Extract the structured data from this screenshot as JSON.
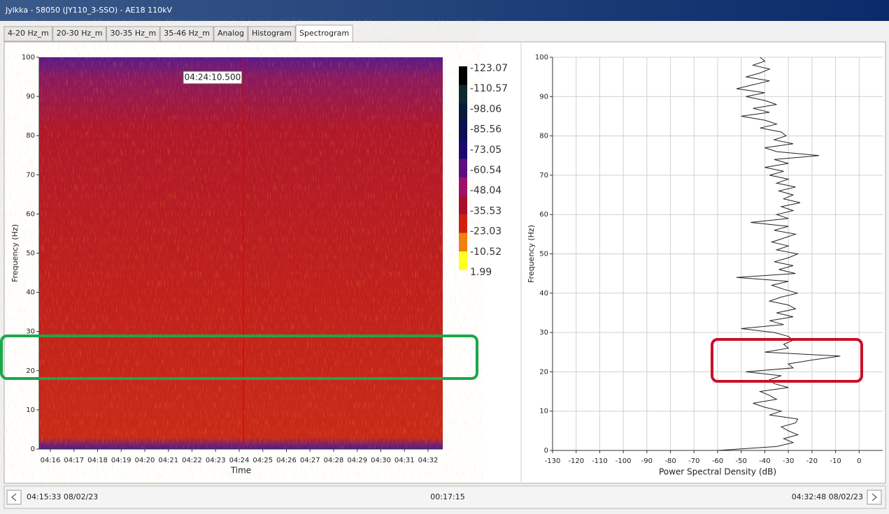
{
  "window": {
    "title": "Jylkka - 58050 (JY110_3-SSO) - AE18 110kV"
  },
  "tabs": [
    {
      "label": "4-20 Hz_m"
    },
    {
      "label": "20-30 Hz_m"
    },
    {
      "label": "30-35 Hz_m"
    },
    {
      "label": "35-46 Hz_m"
    },
    {
      "label": "Analog"
    },
    {
      "label": "Histogram"
    },
    {
      "label": "Spectrogram",
      "active": true
    }
  ],
  "chart_data": [
    {
      "type": "spectrogram",
      "ylabel": "Frequency (Hz)",
      "xlabel": "Time",
      "categories": [
        "04:16",
        "04:17",
        "04:18",
        "04:19",
        "04:20",
        "04:21",
        "04:22",
        "04:23",
        "04:24",
        "04:25",
        "04:26",
        "04:27",
        "04:28",
        "04:29",
        "04:30",
        "04:31",
        "04:32"
      ],
      "ylim": [
        0,
        100
      ],
      "yticks": [
        0,
        10,
        20,
        30,
        40,
        50,
        60,
        70,
        80,
        90,
        100
      ],
      "cursor": "04:24:10.500",
      "colorbar_ticks": [
        -123.07,
        -110.57,
        -98.06,
        -85.56,
        -73.05,
        -60.54,
        -48.04,
        -35.53,
        -23.03,
        -10.52,
        1.99
      ],
      "colorbar_colors": [
        "#000000",
        "#0c2a30",
        "#0a1a3a",
        "#0c1050",
        "#1a0a70",
        "#5a1080",
        "#a0106a",
        "#a8102a",
        "#d02010",
        "#f08010",
        "#ffff20"
      ]
    },
    {
      "type": "line",
      "xlabel": "Power Spectral Density (dB)",
      "ylabel": "Frequency (Hz)",
      "grid": true,
      "xlim": [
        -130,
        10
      ],
      "xticks": [
        -130,
        -120,
        -110,
        -100,
        -90,
        -80,
        -70,
        -60,
        -50,
        -40,
        -30,
        -20,
        -10,
        0
      ],
      "ylim": [
        0,
        100
      ],
      "yticks": [
        0,
        10,
        20,
        30,
        40,
        50,
        60,
        70,
        80,
        90,
        100
      ],
      "y": [
        0,
        1,
        2,
        3,
        4,
        5,
        6,
        7,
        8,
        9,
        10,
        11,
        12,
        13,
        14,
        15,
        16,
        17,
        18,
        19,
        20,
        21,
        22,
        23,
        24,
        25,
        26,
        27,
        28,
        29,
        30,
        31,
        32,
        33,
        34,
        35,
        36,
        37,
        38,
        39,
        40,
        41,
        42,
        43,
        44,
        45,
        46,
        47,
        48,
        49,
        50,
        51,
        52,
        53,
        54,
        55,
        56,
        57,
        58,
        59,
        60,
        61,
        62,
        63,
        64,
        65,
        66,
        67,
        68,
        69,
        70,
        71,
        72,
        73,
        74,
        75,
        76,
        77,
        78,
        79,
        80,
        81,
        82,
        83,
        84,
        85,
        86,
        87,
        88,
        89,
        90,
        91,
        92,
        93,
        94,
        95,
        96,
        97,
        98,
        99,
        100
      ],
      "series": [
        {
          "color": "#222222",
          "values": [
            -60,
            -35,
            -28,
            -32,
            -26,
            -30,
            -33,
            -27,
            -26,
            -38,
            -33,
            -40,
            -45,
            -35,
            -38,
            -42,
            -30,
            -36,
            -38,
            -33,
            -48,
            -28,
            -30,
            -20,
            -8,
            -40,
            -30,
            -32,
            -28,
            -30,
            -36,
            -50,
            -32,
            -38,
            -28,
            -35,
            -27,
            -30,
            -38,
            -33,
            -26,
            -32,
            -37,
            -30,
            -52,
            -27,
            -34,
            -28,
            -36,
            -30,
            -26,
            -35,
            -30,
            -37,
            -32,
            -27,
            -36,
            -30,
            -46,
            -30,
            -35,
            -28,
            -33,
            -25,
            -32,
            -28,
            -34,
            -27,
            -35,
            -30,
            -38,
            -32,
            -40,
            -30,
            -36,
            -17,
            -35,
            -40,
            -28,
            -36,
            -31,
            -33,
            -42,
            -35,
            -40,
            -50,
            -38,
            -45,
            -35,
            -40,
            -48,
            -40,
            -52,
            -45,
            -38,
            -48,
            -42,
            -38,
            -45,
            -40,
            -42
          ]
        }
      ]
    }
  ],
  "footer": {
    "start": "04:15:33 08/02/23",
    "duration": "00:17:15",
    "end": "04:32:48 08/02/23"
  }
}
